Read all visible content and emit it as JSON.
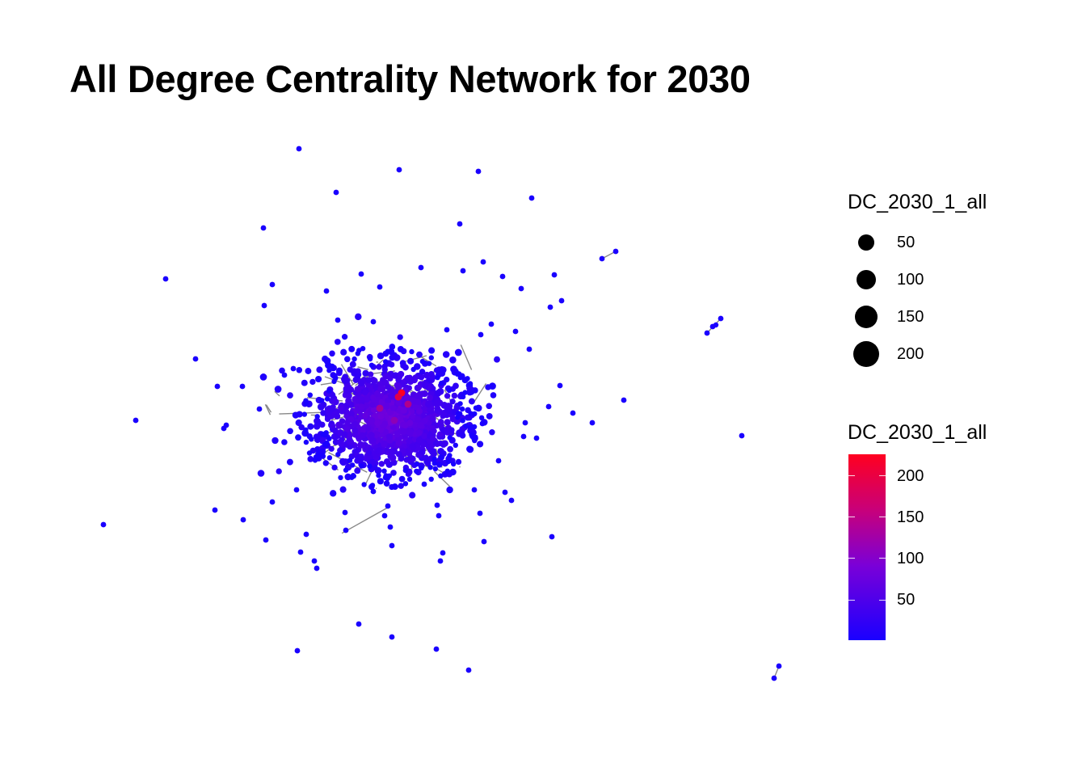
{
  "title": "All Degree Centrality Network for 2030",
  "legend": {
    "size": {
      "title": "DC_2030_1_all",
      "items": [
        {
          "label": "50",
          "value": 50
        },
        {
          "label": "100",
          "value": 100
        },
        {
          "label": "150",
          "value": 150
        },
        {
          "label": "200",
          "value": 200
        }
      ]
    },
    "color": {
      "title": "DC_2030_1_all",
      "low_color": "#1a00ff",
      "high_color": "#ff0020",
      "min": 1,
      "max": 225,
      "ticks": [
        {
          "label": "200",
          "value": 200
        },
        {
          "label": "150",
          "value": 150
        },
        {
          "label": "100",
          "value": 100
        },
        {
          "label": "50",
          "value": 50
        }
      ]
    }
  },
  "node_color": "#1a00ff",
  "hub_color": "#ff0020",
  "edge_color": "#888888"
}
